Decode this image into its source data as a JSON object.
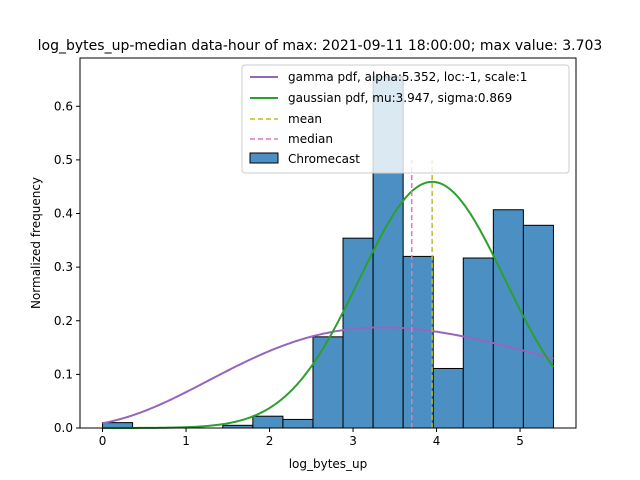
{
  "chart_data": {
    "type": "bar",
    "title": "log_bytes_up-median data-hour of max: 2021-09-11 18:00:00; max value: 3.703",
    "xlabel": "log_bytes_up",
    "ylabel": "Normalized frequency",
    "xlim": [
      -0.27,
      5.67
    ],
    "ylim": [
      0,
      0.69
    ],
    "xticks": [
      0,
      1,
      2,
      3,
      4,
      5
    ],
    "yticks": [
      0.0,
      0.1,
      0.2,
      0.3,
      0.4,
      0.5,
      0.6
    ],
    "grid": false,
    "legend_position": "top-right",
    "histogram": {
      "name": "Chromecast",
      "color": "#4C8FC3",
      "bins": [
        {
          "x0": 0.0,
          "x1": 0.36,
          "value": 0.01
        },
        {
          "x0": 0.36,
          "x1": 0.72,
          "value": 0.0
        },
        {
          "x0": 0.72,
          "x1": 1.08,
          "value": 0.0
        },
        {
          "x0": 1.08,
          "x1": 1.44,
          "value": 0.0
        },
        {
          "x0": 1.44,
          "x1": 1.8,
          "value": 0.005
        },
        {
          "x0": 1.8,
          "x1": 2.16,
          "value": 0.022
        },
        {
          "x0": 2.16,
          "x1": 2.52,
          "value": 0.016
        },
        {
          "x0": 2.52,
          "x1": 2.88,
          "value": 0.17
        },
        {
          "x0": 2.88,
          "x1": 3.24,
          "value": 0.354
        },
        {
          "x0": 3.24,
          "x1": 3.6,
          "value": 0.655
        },
        {
          "x0": 3.6,
          "x1": 3.96,
          "value": 0.32
        },
        {
          "x0": 3.96,
          "x1": 4.32,
          "value": 0.111
        },
        {
          "x0": 4.32,
          "x1": 4.68,
          "value": 0.317
        },
        {
          "x0": 4.68,
          "x1": 5.04,
          "value": 0.407
        },
        {
          "x0": 5.04,
          "x1": 5.4,
          "value": 0.378
        }
      ]
    },
    "series": [
      {
        "name": "gamma pdf, alpha:5.352, loc:-1, scale:1",
        "kind": "gamma",
        "alpha": 5.352,
        "loc": -1,
        "scale": 1,
        "x_range": [
          0,
          5.4
        ],
        "color": "#9467BD"
      },
      {
        "name": "gaussian pdf, mu:3.947, sigma:0.869",
        "kind": "gaussian",
        "mu": 3.947,
        "sigma": 0.869,
        "x_range": [
          0,
          5.4
        ],
        "color": "#2CA02C"
      }
    ],
    "vlines": [
      {
        "name": "mean",
        "x": 3.947,
        "y_range": [
          0,
          0.5
        ],
        "color": "#BCBD22"
      },
      {
        "name": "median",
        "x": 3.703,
        "y_range": [
          0,
          0.5
        ],
        "color": "#E377C2"
      }
    ]
  }
}
